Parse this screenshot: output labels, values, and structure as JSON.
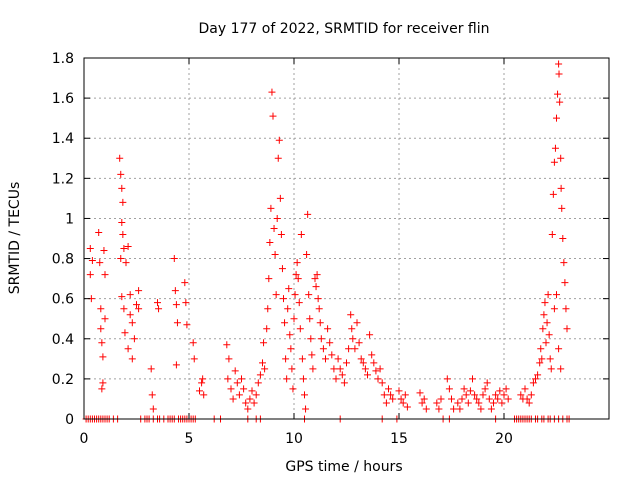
{
  "chart_data": {
    "type": "scatter",
    "title": "Day 177 of 2022, SRMTID for receiver flin",
    "xlabel": "GPS time / hours",
    "ylabel": "SRMTID / TECUs",
    "xlim": [
      0,
      25
    ],
    "ylim": [
      0,
      1.8
    ],
    "x_ticks": [
      "0",
      "5",
      "10",
      "15",
      "20"
    ],
    "x_tick_values": [
      0,
      5,
      10,
      15,
      20
    ],
    "y_ticks": [
      "0",
      "0.2",
      "0.4",
      "0.6",
      "0.8",
      "1",
      "1.2",
      "1.4",
      "1.6",
      "1.8"
    ],
    "y_tick_values": [
      0,
      0.2,
      0.4,
      0.6,
      0.8,
      1.0,
      1.2,
      1.4,
      1.6,
      1.8
    ],
    "grid": true,
    "marker": "+",
    "series": [
      {
        "name": "SRMTID",
        "color": "#ff0000",
        "points": [
          [
            0.3,
            0.85
          ],
          [
            0.3,
            0.72
          ],
          [
            0.35,
            0.6
          ],
          [
            0.4,
            0.79
          ],
          [
            0.7,
            0.93
          ],
          [
            0.75,
            0.78
          ],
          [
            0.8,
            0.55
          ],
          [
            0.8,
            0.45
          ],
          [
            0.85,
            0.38
          ],
          [
            0.9,
            0.31
          ],
          [
            0.9,
            0.18
          ],
          [
            0.85,
            0.15
          ],
          [
            0.95,
            0.84
          ],
          [
            1.0,
            0.72
          ],
          [
            1.0,
            0.5
          ],
          [
            1.7,
            1.3
          ],
          [
            1.75,
            1.22
          ],
          [
            1.8,
            1.15
          ],
          [
            1.85,
            1.08
          ],
          [
            1.8,
            0.98
          ],
          [
            1.85,
            0.92
          ],
          [
            1.9,
            0.85
          ],
          [
            1.75,
            0.8
          ],
          [
            1.8,
            0.61
          ],
          [
            1.9,
            0.55
          ],
          [
            1.95,
            0.43
          ],
          [
            2.0,
            0.78
          ],
          [
            2.1,
            0.86
          ],
          [
            2.2,
            0.62
          ],
          [
            2.2,
            0.52
          ],
          [
            2.3,
            0.48
          ],
          [
            2.4,
            0.4
          ],
          [
            2.5,
            0.57
          ],
          [
            2.6,
            0.64
          ],
          [
            2.6,
            0.55
          ],
          [
            2.1,
            0.35
          ],
          [
            2.3,
            0.3
          ],
          [
            3.2,
            0.25
          ],
          [
            3.25,
            0.12
          ],
          [
            3.3,
            0.05
          ],
          [
            3.5,
            0.58
          ],
          [
            3.55,
            0.55
          ],
          [
            4.3,
            0.8
          ],
          [
            4.35,
            0.64
          ],
          [
            4.4,
            0.57
          ],
          [
            4.45,
            0.48
          ],
          [
            4.4,
            0.27
          ],
          [
            4.8,
            0.68
          ],
          [
            4.85,
            0.58
          ],
          [
            4.9,
            0.47
          ],
          [
            5.2,
            0.38
          ],
          [
            5.25,
            0.3
          ],
          [
            5.5,
            0.14
          ],
          [
            5.6,
            0.18
          ],
          [
            5.65,
            0.2
          ],
          [
            5.7,
            0.12
          ],
          [
            6.8,
            0.37
          ],
          [
            6.9,
            0.3
          ],
          [
            6.85,
            0.2
          ],
          [
            7.0,
            0.15
          ],
          [
            7.1,
            0.1
          ],
          [
            7.2,
            0.24
          ],
          [
            7.3,
            0.18
          ],
          [
            7.4,
            0.12
          ],
          [
            7.5,
            0.2
          ],
          [
            7.6,
            0.15
          ],
          [
            7.7,
            0.08
          ],
          [
            7.8,
            0.05
          ],
          [
            7.9,
            0.1
          ],
          [
            8.0,
            0.14
          ],
          [
            8.1,
            0.08
          ],
          [
            8.2,
            0.12
          ],
          [
            8.3,
            0.18
          ],
          [
            8.4,
            0.22
          ],
          [
            8.5,
            0.28
          ],
          [
            8.55,
            0.38
          ],
          [
            8.6,
            0.25
          ],
          [
            8.7,
            0.45
          ],
          [
            8.75,
            0.55
          ],
          [
            8.8,
            0.7
          ],
          [
            8.85,
            0.88
          ],
          [
            8.9,
            1.05
          ],
          [
            8.95,
            1.63
          ],
          [
            9.0,
            1.51
          ],
          [
            9.05,
            0.95
          ],
          [
            9.1,
            0.82
          ],
          [
            9.15,
            0.62
          ],
          [
            9.2,
            1.0
          ],
          [
            9.25,
            1.3
          ],
          [
            9.3,
            1.39
          ],
          [
            9.35,
            1.1
          ],
          [
            9.4,
            0.92
          ],
          [
            9.45,
            0.75
          ],
          [
            9.5,
            0.6
          ],
          [
            9.55,
            0.48
          ],
          [
            9.6,
            0.3
          ],
          [
            9.65,
            0.2
          ],
          [
            9.7,
            0.55
          ],
          [
            9.75,
            0.65
          ],
          [
            9.8,
            0.42
          ],
          [
            9.85,
            0.35
          ],
          [
            9.9,
            0.25
          ],
          [
            9.95,
            0.15
          ],
          [
            10.0,
            0.5
          ],
          [
            10.05,
            0.62
          ],
          [
            10.1,
            0.72
          ],
          [
            10.15,
            0.78
          ],
          [
            10.2,
            0.7
          ],
          [
            10.25,
            0.58
          ],
          [
            10.3,
            0.45
          ],
          [
            10.35,
            0.92
          ],
          [
            10.4,
            0.3
          ],
          [
            10.45,
            0.2
          ],
          [
            10.5,
            0.12
          ],
          [
            10.55,
            0.05
          ],
          [
            10.6,
            0.82
          ],
          [
            10.65,
            1.02
          ],
          [
            10.7,
            0.62
          ],
          [
            10.75,
            0.5
          ],
          [
            10.8,
            0.4
          ],
          [
            10.85,
            0.32
          ],
          [
            10.9,
            0.25
          ],
          [
            11.0,
            0.7
          ],
          [
            11.05,
            0.66
          ],
          [
            11.1,
            0.72
          ],
          [
            11.15,
            0.6
          ],
          [
            11.2,
            0.55
          ],
          [
            11.25,
            0.48
          ],
          [
            11.3,
            0.4
          ],
          [
            11.4,
            0.35
          ],
          [
            11.5,
            0.3
          ],
          [
            11.6,
            0.45
          ],
          [
            11.7,
            0.38
          ],
          [
            11.8,
            0.32
          ],
          [
            11.9,
            0.25
          ],
          [
            12.0,
            0.2
          ],
          [
            12.1,
            0.3
          ],
          [
            12.2,
            0.25
          ],
          [
            12.3,
            0.22
          ],
          [
            12.4,
            0.18
          ],
          [
            12.5,
            0.28
          ],
          [
            12.6,
            0.35
          ],
          [
            12.7,
            0.52
          ],
          [
            12.75,
            0.45
          ],
          [
            12.8,
            0.4
          ],
          [
            12.9,
            0.35
          ],
          [
            13.0,
            0.48
          ],
          [
            13.1,
            0.38
          ],
          [
            13.2,
            0.3
          ],
          [
            13.3,
            0.28
          ],
          [
            13.4,
            0.25
          ],
          [
            13.5,
            0.22
          ],
          [
            13.6,
            0.42
          ],
          [
            13.7,
            0.32
          ],
          [
            13.8,
            0.28
          ],
          [
            13.9,
            0.24
          ],
          [
            14.0,
            0.2
          ],
          [
            14.1,
            0.25
          ],
          [
            14.2,
            0.18
          ],
          [
            14.3,
            0.12
          ],
          [
            14.4,
            0.08
          ],
          [
            14.5,
            0.15
          ],
          [
            14.6,
            0.12
          ],
          [
            14.7,
            0.1
          ],
          [
            15.0,
            0.14
          ],
          [
            15.1,
            0.1
          ],
          [
            15.2,
            0.08
          ],
          [
            15.3,
            0.12
          ],
          [
            15.4,
            0.06
          ],
          [
            16.0,
            0.13
          ],
          [
            16.1,
            0.08
          ],
          [
            16.2,
            0.1
          ],
          [
            16.3,
            0.05
          ],
          [
            16.8,
            0.08
          ],
          [
            16.9,
            0.05
          ],
          [
            17.0,
            0.1
          ],
          [
            17.3,
            0.2
          ],
          [
            17.4,
            0.15
          ],
          [
            17.5,
            0.1
          ],
          [
            17.6,
            0.05
          ],
          [
            17.8,
            0.08
          ],
          [
            17.9,
            0.05
          ],
          [
            18.0,
            0.1
          ],
          [
            18.1,
            0.15
          ],
          [
            18.2,
            0.12
          ],
          [
            18.3,
            0.08
          ],
          [
            18.4,
            0.14
          ],
          [
            18.5,
            0.2
          ],
          [
            18.6,
            0.12
          ],
          [
            18.7,
            0.1
          ],
          [
            18.8,
            0.08
          ],
          [
            18.9,
            0.05
          ],
          [
            19.0,
            0.12
          ],
          [
            19.1,
            0.15
          ],
          [
            19.2,
            0.18
          ],
          [
            19.3,
            0.1
          ],
          [
            19.4,
            0.05
          ],
          [
            19.5,
            0.08
          ],
          [
            19.6,
            0.12
          ],
          [
            19.7,
            0.1
          ],
          [
            19.8,
            0.14
          ],
          [
            19.9,
            0.08
          ],
          [
            20.0,
            0.12
          ],
          [
            20.1,
            0.15
          ],
          [
            20.2,
            0.1
          ],
          [
            20.8,
            0.12
          ],
          [
            20.9,
            0.1
          ],
          [
            21.0,
            0.15
          ],
          [
            21.1,
            0.1
          ],
          [
            21.2,
            0.08
          ],
          [
            21.3,
            0.12
          ],
          [
            21.4,
            0.18
          ],
          [
            21.5,
            0.2
          ],
          [
            21.6,
            0.22
          ],
          [
            21.7,
            0.28
          ],
          [
            21.75,
            0.35
          ],
          [
            21.8,
            0.3
          ],
          [
            21.85,
            0.45
          ],
          [
            21.9,
            0.52
          ],
          [
            21.95,
            0.58
          ],
          [
            22.0,
            0.38
          ],
          [
            22.05,
            0.48
          ],
          [
            22.1,
            0.62
          ],
          [
            22.15,
            0.42
          ],
          [
            22.2,
            0.3
          ],
          [
            22.25,
            0.25
          ],
          [
            22.3,
            0.92
          ],
          [
            22.35,
            1.12
          ],
          [
            22.4,
            1.28
          ],
          [
            22.45,
            1.35
          ],
          [
            22.5,
            1.5
          ],
          [
            22.55,
            1.62
          ],
          [
            22.6,
            1.77
          ],
          [
            22.62,
            1.72
          ],
          [
            22.65,
            1.58
          ],
          [
            22.7,
            1.3
          ],
          [
            22.72,
            1.15
          ],
          [
            22.75,
            1.05
          ],
          [
            22.8,
            0.9
          ],
          [
            22.85,
            0.78
          ],
          [
            22.9,
            0.68
          ],
          [
            22.95,
            0.55
          ],
          [
            23.0,
            0.45
          ],
          [
            22.5,
            0.62
          ],
          [
            22.4,
            0.55
          ],
          [
            22.6,
            0.35
          ],
          [
            22.7,
            0.25
          ]
        ],
        "zero_points": [
          0.1,
          0.2,
          0.3,
          0.4,
          0.5,
          0.6,
          0.7,
          0.8,
          0.9,
          1.0,
          1.1,
          1.2,
          1.4,
          1.6,
          2.7,
          2.9,
          3.0,
          3.1,
          3.3,
          3.5,
          3.6,
          3.8,
          4.0,
          4.1,
          4.2,
          4.3,
          4.5,
          4.6,
          4.7,
          4.8,
          4.9,
          5.0,
          5.1,
          5.2,
          5.3,
          6.2,
          6.5,
          7.8,
          8.2,
          8.4,
          10.5,
          12.2,
          14.2,
          14.9,
          17.1,
          17.4,
          19.6,
          20.5,
          20.6,
          20.7,
          20.8,
          20.9,
          21.0,
          21.1,
          21.2,
          21.3,
          21.5,
          21.6,
          21.8,
          21.9,
          22.1,
          22.2,
          22.4,
          22.6,
          22.8,
          23.0,
          23.1
        ]
      }
    ]
  }
}
